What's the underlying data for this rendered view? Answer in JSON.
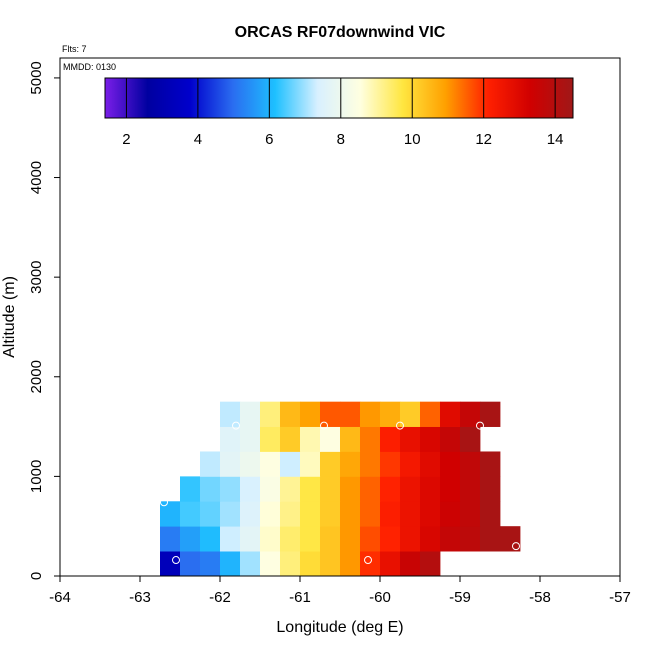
{
  "chart_data": {
    "type": "heatmap",
    "title": "ORCAS RF07downwind VIC",
    "annotations": [
      "Flts: 7",
      "MMDD: 0130"
    ],
    "xlabel": "Longitude (deg E)",
    "ylabel": "Altitude (m)",
    "xlim": [
      -64,
      -57
    ],
    "ylim": [
      0,
      5200
    ],
    "x_ticks": [
      -64,
      -63,
      -62,
      -61,
      -60,
      -59,
      -58,
      -57
    ],
    "y_ticks": [
      0,
      1000,
      2000,
      3000,
      4000,
      5000
    ],
    "cell_width_deg": 0.25,
    "cell_height_m": 250,
    "colorbar": {
      "range": [
        1.4,
        14.5
      ],
      "ticks": [
        2,
        4,
        6,
        8,
        10,
        12,
        14
      ],
      "stops": [
        "#7a1ee8",
        "#0000a0",
        "#0000cc",
        "#2a6cf0",
        "#1ec0ff",
        "#d8f0ff",
        "#ffffe0",
        "#ffe640",
        "#ffa000",
        "#ff2000",
        "#d00000",
        "#a01818"
      ]
    },
    "rows": [
      {
        "alt": 125,
        "lon_start": -62.75,
        "values": [
          3.3,
          5.0,
          5.2,
          6.0,
          7.0,
          8.5,
          9.3,
          9.9,
          10.3,
          11.0,
          12.0,
          12.7,
          13.5,
          14.0
        ]
      },
      {
        "alt": 375,
        "lon_start": -62.75,
        "values": [
          5.2,
          5.7,
          6.1,
          7.3,
          7.7,
          8.7,
          9.4,
          9.7,
          10.3,
          11.0,
          11.7,
          12.1,
          12.6,
          13.1,
          13.6,
          13.8,
          14.3,
          14.3
        ]
      },
      {
        "alt": 625,
        "lon_start": -62.75,
        "values": [
          6.0,
          6.4,
          6.6,
          7.0,
          7.5,
          8.6,
          9.2,
          9.7,
          10.2,
          11.0,
          11.5,
          12.2,
          12.6,
          13.0,
          13.4,
          13.7,
          14.3
        ]
      },
      {
        "alt": 875,
        "lon_start": -62.5,
        "values": [
          6.3,
          6.7,
          6.9,
          7.4,
          8.4,
          9.1,
          9.7,
          10.2,
          11.0,
          11.5,
          12.1,
          12.6,
          13.0,
          13.3,
          13.7,
          14.3
        ]
      },
      {
        "alt": 1125,
        "lon_start": -62.25,
        "values": [
          7.2,
          7.7,
          8.0,
          8.5,
          7.3,
          8.8,
          10.2,
          10.8,
          11.3,
          11.9,
          12.4,
          12.9,
          13.3,
          13.7,
          14.3
        ]
      },
      {
        "alt": 1375,
        "lon_start": -62.0,
        "values": [
          7.6,
          7.8,
          9.5,
          10.2,
          8.9,
          8.5,
          10.5,
          11.3,
          12.2,
          12.7,
          13.1,
          13.6,
          14.3
        ]
      },
      {
        "alt": 1625,
        "lon_start": -62.0,
        "values": [
          7.2,
          7.8,
          9.3,
          10.5,
          10.9,
          11.6,
          11.6,
          11.0,
          10.7,
          10.2,
          11.5,
          12.9,
          13.6,
          14.3
        ]
      }
    ],
    "flight_points": [
      {
        "lon": -62.55,
        "alt": 160
      },
      {
        "lon": -62.7,
        "alt": 740
      },
      {
        "lon": -61.8,
        "alt": 1510
      },
      {
        "lon": -60.7,
        "alt": 1510
      },
      {
        "lon": -60.15,
        "alt": 160
      },
      {
        "lon": -59.75,
        "alt": 1510
      },
      {
        "lon": -59.15,
        "alt": 160
      },
      {
        "lon": -58.75,
        "alt": 1510
      },
      {
        "lon": -58.3,
        "alt": 300
      }
    ]
  }
}
